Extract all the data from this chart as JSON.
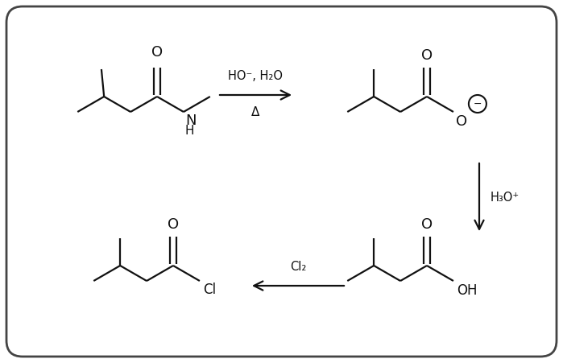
{
  "background_color": "#ffffff",
  "border_color": "#444444",
  "line_color": "#111111",
  "reagent1_line1": "HO⁻, H₂O",
  "reagent1_line2": "Δ",
  "reagent2": "H₃O⁺",
  "reagent3": "Cl₂",
  "figsize": [
    6.99,
    4.51
  ],
  "dpi": 100
}
